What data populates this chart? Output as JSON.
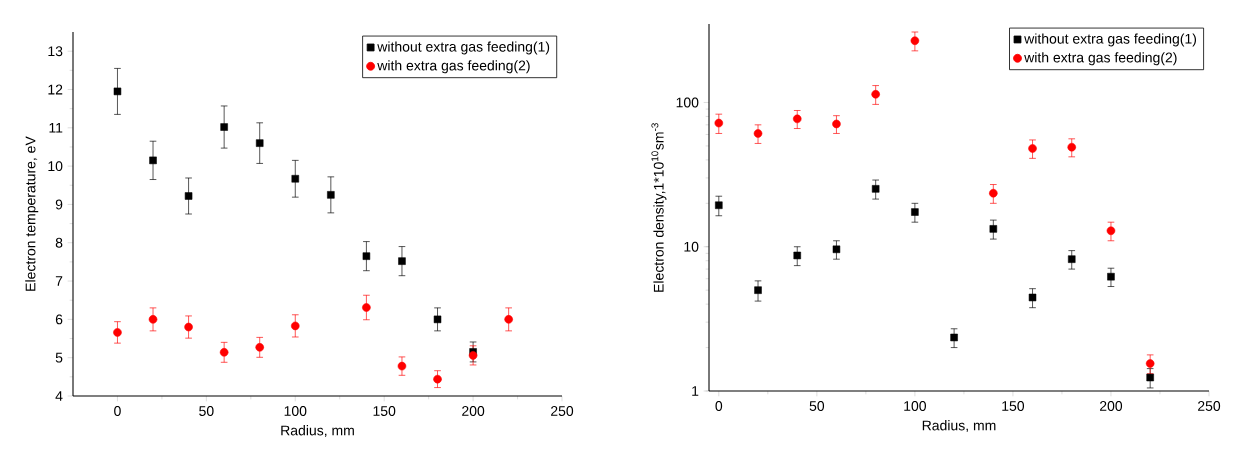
{
  "chart_data": [
    {
      "type": "scatter",
      "xlabel": "Radius, mm",
      "ylabel": "Electron temperature, eV",
      "xlim": [
        -25,
        250
      ],
      "ylim": [
        4,
        13.5
      ],
      "xticks": [
        0,
        50,
        100,
        150,
        200,
        250
      ],
      "yticks": [
        4,
        5,
        6,
        7,
        8,
        9,
        10,
        11,
        12,
        13
      ],
      "legend": "top right",
      "series": [
        {
          "name": "without  extra gas feeding(1)",
          "color": "#000000",
          "marker": "square",
          "x": [
            0,
            20,
            40,
            60,
            80,
            100,
            120,
            140,
            160,
            180,
            200
          ],
          "values": [
            11.95,
            10.15,
            9.22,
            11.02,
            10.6,
            9.67,
            9.25,
            7.65,
            7.52,
            6.0,
            5.15
          ],
          "errors": [
            0.6,
            0.5,
            0.47,
            0.55,
            0.53,
            0.48,
            0.47,
            0.38,
            0.38,
            0.3,
            0.26
          ]
        },
        {
          "name": "with extra gas feeding(2)",
          "color": "#ff0000",
          "marker": "circle",
          "x": [
            0,
            20,
            40,
            60,
            80,
            100,
            140,
            160,
            180,
            200,
            220
          ],
          "values": [
            5.66,
            6.0,
            5.8,
            5.14,
            5.27,
            5.83,
            6.31,
            4.78,
            4.44,
            5.06,
            6.0
          ],
          "errors": [
            0.28,
            0.3,
            0.29,
            0.26,
            0.26,
            0.29,
            0.32,
            0.24,
            0.22,
            0.25,
            0.3
          ]
        }
      ]
    },
    {
      "type": "scatter",
      "xlabel": "Radius, mm",
      "ylabel": "Electron density,1*10$^{10}$sm$^{-3}$",
      "xlim": [
        -5,
        250
      ],
      "ylim": [
        1,
        350
      ],
      "log": "y",
      "xticks": [
        0,
        50,
        100,
        150,
        200,
        250
      ],
      "yticks": [
        1,
        10,
        100
      ],
      "legend": "top right",
      "series": [
        {
          "name": "without  extra gas feeding(1)",
          "color": "#000000",
          "marker": "square",
          "x": [
            0,
            20,
            40,
            60,
            80,
            100,
            120,
            140,
            160,
            180,
            200,
            220
          ],
          "values": [
            19.4,
            5.0,
            8.7,
            9.6,
            25.2,
            17.4,
            2.35,
            13.3,
            4.45,
            8.2,
            6.2,
            1.24
          ],
          "errors": [
            3,
            0.8,
            1.3,
            1.4,
            3.8,
            2.6,
            0.35,
            2,
            0.67,
            1.2,
            0.9,
            0.19
          ]
        },
        {
          "name": "with extra gas feeding(2)",
          "color": "#ff0000",
          "marker": "circle",
          "x": [
            0,
            20,
            40,
            60,
            80,
            100,
            140,
            160,
            180,
            200,
            220
          ],
          "values": [
            72,
            61,
            77,
            71,
            114,
            268,
            23.5,
            48,
            49,
            12.9,
            1.55
          ],
          "errors": [
            11,
            9,
            11,
            10,
            17,
            40,
            3.5,
            7,
            7,
            1.9,
            0.23
          ]
        }
      ]
    }
  ]
}
